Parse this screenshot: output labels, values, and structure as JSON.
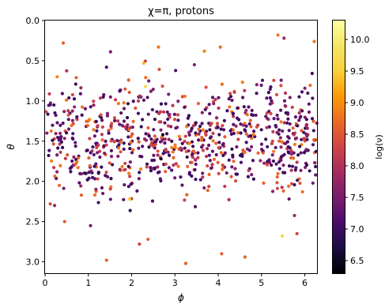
{
  "chart_data": {
    "type": "scatter",
    "title": "χ=π, protons",
    "xlabel": "ϕ",
    "ylabel": "θ",
    "xlim": [
      0,
      6.2832
    ],
    "ylim": [
      3.1416,
      0
    ],
    "y_inverted": true,
    "x_ticks": [
      0,
      1,
      2,
      3,
      4,
      5,
      6
    ],
    "x_tick_labels": [
      "0",
      "1",
      "2",
      "3",
      "4",
      "5",
      "6"
    ],
    "y_ticks": [
      0.0,
      0.5,
      1.0,
      1.5,
      2.0,
      2.5,
      3.0
    ],
    "y_tick_labels": [
      "0.0",
      "0.5",
      "1.0",
      "1.5",
      "2.0",
      "2.5",
      "3.0"
    ],
    "grid": false,
    "colorbar": {
      "label": "log(ν)",
      "range": [
        6.3,
        10.3
      ],
      "colormap": "inferno",
      "ticks": [
        6.5,
        7.0,
        7.5,
        8.0,
        8.5,
        9.0,
        9.5,
        10.0
      ],
      "tick_labels": [
        "6.5",
        "7.0",
        "7.5",
        "8.0",
        "8.5",
        "9.0",
        "9.5",
        "10.0"
      ]
    },
    "notable_points": [
      {
        "x": 0.42,
        "y": 0.28,
        "c": 8.6
      },
      {
        "x": 2.62,
        "y": 0.33,
        "c": 8.8
      },
      {
        "x": 2.28,
        "y": 0.53,
        "c": 9.3
      },
      {
        "x": 3.45,
        "y": 0.55,
        "c": 7.6
      },
      {
        "x": 3.68,
        "y": 0.38,
        "c": 8.9
      },
      {
        "x": 4.05,
        "y": 0.33,
        "c": 8.7
      },
      {
        "x": 5.38,
        "y": 0.18,
        "c": 8.8
      },
      {
        "x": 5.52,
        "y": 0.22,
        "c": 7.8
      },
      {
        "x": 6.22,
        "y": 0.26,
        "c": 8.8
      },
      {
        "x": 1.42,
        "y": 0.58,
        "c": 7.2
      },
      {
        "x": 1.42,
        "y": 2.98,
        "c": 8.6
      },
      {
        "x": 3.25,
        "y": 3.02,
        "c": 8.6
      },
      {
        "x": 4.08,
        "y": 2.9,
        "c": 8.6
      },
      {
        "x": 4.62,
        "y": 2.94,
        "c": 8.6
      },
      {
        "x": 5.48,
        "y": 2.68,
        "c": 9.6
      },
      {
        "x": 5.82,
        "y": 2.65,
        "c": 8.3
      },
      {
        "x": 1.95,
        "y": 2.22,
        "c": 9.6
      },
      {
        "x": 0.12,
        "y": 2.28,
        "c": 8.4
      },
      {
        "x": 0.22,
        "y": 2.3,
        "c": 7.8
      },
      {
        "x": 0.45,
        "y": 2.5,
        "c": 8.6
      },
      {
        "x": 1.05,
        "y": 2.55,
        "c": 7.5
      },
      {
        "x": 2.38,
        "y": 2.72,
        "c": 8.6
      },
      {
        "x": 2.18,
        "y": 2.78,
        "c": 8.3
      },
      {
        "x": 2.72,
        "y": 1.42,
        "c": 6.5
      },
      {
        "x": 2.68,
        "y": 1.72,
        "c": 6.6
      },
      {
        "x": 2.32,
        "y": 0.82,
        "c": 9.7
      },
      {
        "x": 1.93,
        "y": 0.74,
        "c": 8.6
      },
      {
        "x": 0.28,
        "y": 0.7,
        "c": 8.9
      },
      {
        "x": 0.72,
        "y": 0.71,
        "c": 8.6
      },
      {
        "x": 6.25,
        "y": 1.92,
        "c": 7.3
      }
    ],
    "bulk": {
      "count": 820,
      "x_range": [
        0,
        6.28
      ],
      "y_distribution": "dense band centered at 1.5 (mostly 0.9–2.1), sparser tails to 0.2 and 3.0",
      "color_range": [
        6.8,
        8.9
      ]
    }
  }
}
